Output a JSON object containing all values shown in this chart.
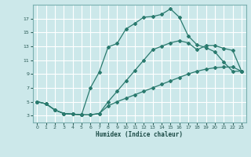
{
  "xlabel": "Humidex (Indice chaleur)",
  "background_color": "#cce8ea",
  "grid_color": "#ffffff",
  "line_color": "#2a7a6e",
  "xlim": [
    -0.5,
    23.5
  ],
  "ylim": [
    2.0,
    19.0
  ],
  "xticks": [
    0,
    1,
    2,
    3,
    4,
    5,
    6,
    7,
    8,
    9,
    10,
    11,
    12,
    13,
    14,
    15,
    16,
    17,
    18,
    19,
    20,
    21,
    22,
    23
  ],
  "yticks": [
    3,
    5,
    7,
    9,
    11,
    13,
    15,
    17
  ],
  "line1_x": [
    0,
    1,
    2,
    3,
    4,
    5,
    5,
    6,
    7,
    8,
    9,
    10,
    11,
    12,
    13,
    14,
    15,
    16,
    17,
    18,
    19,
    20,
    21,
    22,
    23
  ],
  "line1_y": [
    5.0,
    4.7,
    3.8,
    3.3,
    3.2,
    3.1,
    3.1,
    7.0,
    9.3,
    12.9,
    13.4,
    15.5,
    16.3,
    17.2,
    17.3,
    17.6,
    18.4,
    17.2,
    14.5,
    13.2,
    12.8,
    12.2,
    10.7,
    9.4,
    9.4
  ],
  "line2_x": [
    0,
    1,
    2,
    3,
    4,
    5,
    6,
    7,
    8,
    9,
    10,
    11,
    12,
    13,
    14,
    15,
    16,
    17,
    18,
    19,
    20,
    21,
    22,
    23
  ],
  "line2_y": [
    5.0,
    4.7,
    3.8,
    3.3,
    3.2,
    3.1,
    3.1,
    3.3,
    4.4,
    5.0,
    5.5,
    6.0,
    6.5,
    7.0,
    7.5,
    8.0,
    8.5,
    9.0,
    9.4,
    9.7,
    9.9,
    10.0,
    10.0,
    9.4
  ],
  "line3_x": [
    0,
    1,
    2,
    3,
    4,
    5,
    6,
    7,
    8,
    9,
    10,
    11,
    12,
    13,
    14,
    15,
    16,
    17,
    18,
    19,
    20,
    21,
    22,
    23
  ],
  "line3_y": [
    5.0,
    4.7,
    3.8,
    3.3,
    3.2,
    3.1,
    3.1,
    3.3,
    5.0,
    6.5,
    8.0,
    9.5,
    11.0,
    12.5,
    13.0,
    13.5,
    13.8,
    13.5,
    12.5,
    13.1,
    13.1,
    12.7,
    12.4,
    9.4
  ]
}
